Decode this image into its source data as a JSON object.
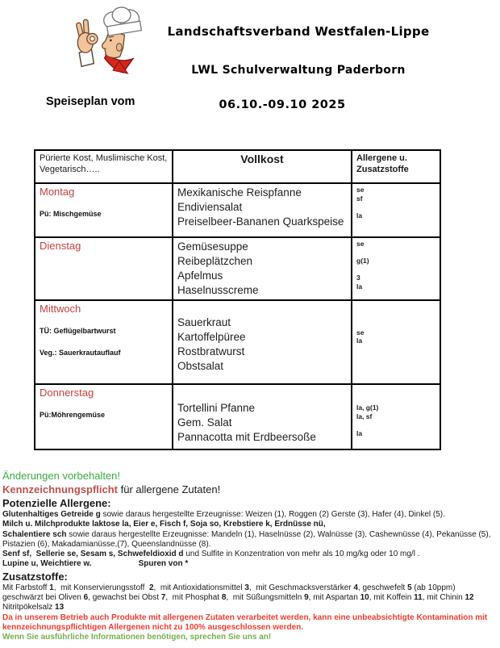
{
  "palette": {
    "day_red": "#c2413e",
    "label_red": "#c0504d",
    "warn_red": "#ec3d30",
    "green": "#3aab43",
    "green2": "#74b14c"
  },
  "header": {
    "org_line1": "Landschaftsverband Westfalen-Lippe",
    "org_line2": "LWL Schulverwaltung Paderborn",
    "plan_label": "Speiseplan vom",
    "date_range": "06.10.-09.10 2025",
    "logo": "chef-logo"
  },
  "menu_table": {
    "columns": [
      "Pürierte Kost, Muslimische Kost, Vegetarisch…..",
      "Vollkost",
      "Allergene u. Zusatzstoffe"
    ],
    "rows": [
      {
        "day": "Montag",
        "notes": [
          "Pü: Mischgemüse"
        ],
        "dishes": [
          "Mexikanische Reispfanne",
          "Endiviensalat",
          "Preiselbeer-Bananen Quarkspeise"
        ],
        "allergen_lines": [
          "se",
          "sf",
          "",
          "la"
        ]
      },
      {
        "day": "Dienstag",
        "notes": [],
        "dishes": [
          "Gemüsesuppe",
          "Reibeplätzchen",
          "Apfelmus",
          "Haselnusscreme"
        ],
        "allergen_lines": [
          "se",
          "",
          "g(1)",
          "",
          "3",
          "la"
        ]
      },
      {
        "day": "Mittwoch",
        "notes": [
          "TÜ: Geflügelbartwurst",
          "Veg.: Sauerkrautauflauf"
        ],
        "dishes": [
          "Sauerkraut",
          "Kartoffelpüree",
          "Rostbratwurst",
          "Obstsalat"
        ],
        "allergen_lines": [
          "",
          "",
          "",
          "se",
          "la"
        ]
      },
      {
        "day": "Donnerstag",
        "notes": [
          "Pü:Möhrengemüse"
        ],
        "dishes": [
          "Tortellini Pfanne",
          "Gem. Salat",
          "Pannacotta mit Erdbeersoße"
        ],
        "allergen_lines": [
          "",
          "",
          "la, g(1)",
          "la, sf",
          "",
          "la"
        ]
      }
    ]
  },
  "footer": {
    "lines": [
      {
        "style": "lg",
        "segs": [
          {
            "t": "Änderungen vorbehalten!",
            "c": "green"
          }
        ]
      },
      {
        "style": "lg",
        "segs": [
          {
            "t": "Kennzeichnungspflicht",
            "b": 1,
            "c": "label_red"
          },
          {
            "t": " für allergene Zutaten!"
          }
        ]
      },
      {
        "style": "lg",
        "segs": [
          {
            "t": "Potenzielle Allergene:",
            "b": 1
          }
        ]
      },
      {
        "style": "fine",
        "segs": [
          {
            "t": "Glutenhaltiges Getreide g",
            "b": 1
          },
          {
            "t": " sowie daraus hergestellte Erzeugnisse: Weizen (1), Roggen (2) Gerste (3), Hafer (4), Dinkel (5)."
          }
        ]
      },
      {
        "style": "fine",
        "segs": [
          {
            "t": "Milch u. Milchprodukte laktose la, Eier e, Fisch f, Soja so, Krebstiere k, Erdnüsse nü,",
            "b": 1
          }
        ]
      },
      {
        "style": "fine",
        "segs": [
          {
            "t": "Schalentiere sch",
            "b": 1
          },
          {
            "t": " sowie daraus hergestellte Erzeugnisse: Mandeln (1), Haselnüsse (2), Walnüsse (3), Cashewnüsse (4), Pekanüsse (5),"
          }
        ]
      },
      {
        "style": "fine",
        "segs": [
          {
            "t": "Pistazien (6), Makadamianüsse,(7), Queenslandnüsse (8)."
          }
        ]
      },
      {
        "style": "fine",
        "segs": [
          {
            "t": "Senf sf,  Sellerie se, Sesam s, Schwefeldioxid d",
            "b": 1
          },
          {
            "t": " und Sulfite in Konzentration von mehr als 10 mg/kg oder 10 mg/l ."
          }
        ]
      },
      {
        "style": "fine",
        "segs": [
          {
            "t": "Lupine u, Weichtiere w.",
            "b": 1
          },
          {
            "gap": 58
          },
          {
            "t": "Spuren von *",
            "b": 1
          }
        ]
      },
      {
        "style": "lg",
        "segs": [
          {
            "t": "Zusatzstoffe:",
            "b": 1
          }
        ]
      },
      {
        "style": "fine",
        "segs": [
          {
            "t": "Mit Farbstoff "
          },
          {
            "t": "1",
            "b": 1
          },
          {
            "t": ",  mit Konservierungsstoff  "
          },
          {
            "t": "2",
            "b": 1
          },
          {
            "t": ",  mit Antioxidationsmittel "
          },
          {
            "t": "3",
            "b": 1
          },
          {
            "t": ",  mit Geschmacksverstärker "
          },
          {
            "t": "4",
            "b": 1
          },
          {
            "t": ", geschwefelt "
          },
          {
            "t": "5",
            "b": 1
          },
          {
            "t": " (ab 10ppm)"
          }
        ]
      },
      {
        "style": "fine",
        "segs": [
          {
            "t": "geschwärzt bei Oliven "
          },
          {
            "t": "6",
            "b": 1
          },
          {
            "t": ", gewachst bei Obst "
          },
          {
            "t": "7",
            "b": 1
          },
          {
            "t": ",  mit Phosphat "
          },
          {
            "t": "8",
            "b": 1
          },
          {
            "t": ",  mit Süßungsmitteln "
          },
          {
            "t": "9",
            "b": 1
          },
          {
            "t": ", mit Aspartan "
          },
          {
            "t": "10",
            "b": 1
          },
          {
            "t": ", mit Koffein "
          },
          {
            "t": "11",
            "b": 1
          },
          {
            "t": ", mit Chinin "
          },
          {
            "t": "12",
            "b": 1
          }
        ]
      },
      {
        "style": "fine",
        "segs": [
          {
            "t": "Nitritpökelsalz "
          },
          {
            "t": "13",
            "b": 1
          }
        ]
      },
      {
        "style": "fine",
        "segs": [
          {
            "t": "Da in unserem Betrieb auch Produkte mit allergenen Zutaten verarbeitet werden, kann eine unbeabsichtigte Kontamination mit",
            "b": 1,
            "c": "warn_red"
          }
        ]
      },
      {
        "style": "fine",
        "segs": [
          {
            "t": "kennzeichnungspflichtigen Allergenen nicht zu 100% ausgeschlossen werden.",
            "b": 1,
            "c": "warn_red"
          }
        ]
      },
      {
        "style": "fine",
        "segs": [
          {
            "t": "Wenn Sie ausführliche Informationen benötigen, sprechen Sie uns an!",
            "b": 1,
            "c": "green2"
          }
        ]
      }
    ]
  }
}
